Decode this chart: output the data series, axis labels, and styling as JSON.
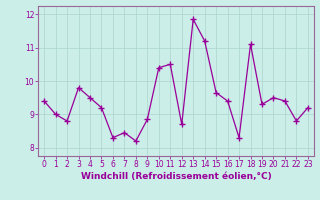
{
  "x": [
    0,
    1,
    2,
    3,
    4,
    5,
    6,
    7,
    8,
    9,
    10,
    11,
    12,
    13,
    14,
    15,
    16,
    17,
    18,
    19,
    20,
    21,
    22,
    23
  ],
  "y": [
    9.4,
    9.0,
    8.8,
    9.8,
    9.5,
    9.2,
    8.3,
    8.45,
    8.2,
    8.85,
    10.4,
    10.5,
    8.7,
    11.85,
    11.2,
    9.65,
    9.4,
    8.3,
    11.1,
    9.3,
    9.5,
    9.4,
    8.8,
    9.2
  ],
  "line_color": "#990099",
  "marker": "+",
  "markersize": 4,
  "markeredgewidth": 1.0,
  "linewidth": 0.9,
  "xlabel": "Windchill (Refroidissement éolien,°C)",
  "xlim": [
    -0.5,
    23.5
  ],
  "ylim": [
    7.75,
    12.25
  ],
  "yticks": [
    8,
    9,
    10,
    11,
    12
  ],
  "xticks": [
    0,
    1,
    2,
    3,
    4,
    5,
    6,
    7,
    8,
    9,
    10,
    11,
    12,
    13,
    14,
    15,
    16,
    17,
    18,
    19,
    20,
    21,
    22,
    23
  ],
  "xtick_labels": [
    "0",
    "1",
    "2",
    "3",
    "4",
    "5",
    "6",
    "7",
    "8",
    "9",
    "10",
    "11",
    "12",
    "13",
    "14",
    "15",
    "16",
    "17",
    "18",
    "19",
    "20",
    "21",
    "22",
    "23"
  ],
  "bg_color": "#cceee8",
  "grid_color": "#aad4cc",
  "spine_color": "#996699",
  "tick_color": "#990099",
  "label_color": "#990099",
  "tick_fontsize": 5.5,
  "xlabel_fontsize": 6.5
}
